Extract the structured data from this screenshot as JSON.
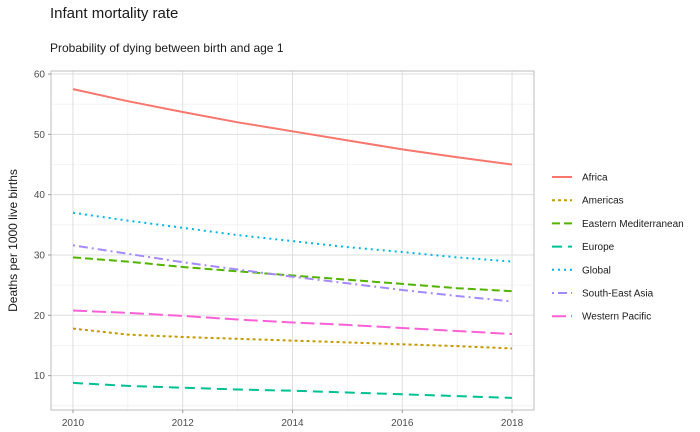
{
  "chart_data": {
    "type": "line",
    "title": "Infant mortality rate",
    "subtitle": "Probability of dying between birth and age 1",
    "xlabel": "",
    "ylabel": "Deaths per 1000 live births",
    "xlim": [
      2009.6,
      2018.4
    ],
    "ylim": [
      4.3,
      60.5
    ],
    "x_ticks": [
      2010,
      2012,
      2014,
      2016,
      2018
    ],
    "y_ticks": [
      10,
      20,
      30,
      40,
      50,
      60
    ],
    "x": [
      2010,
      2011,
      2012,
      2013,
      2014,
      2015,
      2016,
      2017,
      2018
    ],
    "grid": true,
    "legend_position": "right",
    "series": [
      {
        "name": "Africa",
        "color": "#F8766D",
        "dash": "solid",
        "values": [
          57.5,
          55.5,
          53.7,
          52.0,
          50.5,
          49.0,
          47.5,
          46.2,
          45.0
        ]
      },
      {
        "name": "Americas",
        "color": "#C49A00",
        "dash": "dotted-dash",
        "values": [
          17.8,
          16.8,
          16.4,
          16.1,
          15.8,
          15.5,
          15.2,
          14.9,
          14.5
        ]
      },
      {
        "name": "Eastern Mediterranean",
        "color": "#53B400",
        "dash": "dashed",
        "values": [
          29.6,
          28.9,
          28.0,
          27.3,
          26.6,
          25.9,
          25.2,
          24.5,
          24.0
        ]
      },
      {
        "name": "Europe",
        "color": "#00C094",
        "dash": "longdash",
        "values": [
          8.8,
          8.3,
          8.0,
          7.7,
          7.5,
          7.2,
          6.9,
          6.6,
          6.3
        ]
      },
      {
        "name": "Global",
        "color": "#00B6EB",
        "dash": "dotted",
        "values": [
          37.0,
          35.7,
          34.5,
          33.3,
          32.3,
          31.3,
          30.5,
          29.6,
          28.9
        ]
      },
      {
        "name": "South-East Asia",
        "color": "#A58AFF",
        "dash": "dotdash",
        "values": [
          31.6,
          30.2,
          28.8,
          27.6,
          26.4,
          25.3,
          24.2,
          23.2,
          22.3
        ]
      },
      {
        "name": "Western Pacific",
        "color": "#FB61D7",
        "dash": "longerdash",
        "values": [
          20.8,
          20.4,
          19.9,
          19.3,
          18.8,
          18.4,
          17.9,
          17.4,
          16.9
        ]
      }
    ]
  }
}
